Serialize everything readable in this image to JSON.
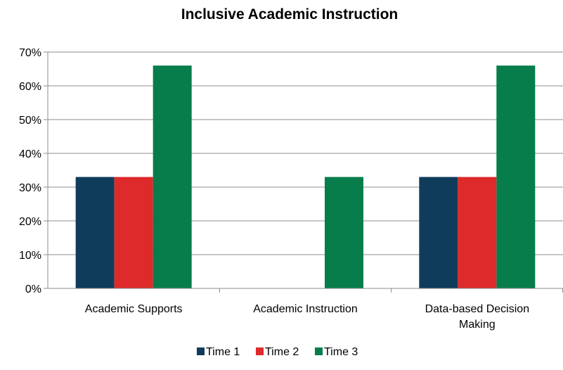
{
  "chart_data": {
    "type": "bar",
    "title": "Inclusive Academic Instruction",
    "xlabel": "",
    "ylabel": "",
    "categories": [
      [
        "Academic Supports"
      ],
      [
        "Academic Instruction"
      ],
      [
        "Data-based Decision",
        "Making"
      ]
    ],
    "series": [
      {
        "name": "Time 1",
        "color": "#0f3c5a",
        "values": [
          33,
          0,
          33
        ]
      },
      {
        "name": "Time 2",
        "color": "#de2a2a",
        "values": [
          33,
          0,
          33
        ]
      },
      {
        "name": "Time 3",
        "color": "#067d4b",
        "values": [
          66,
          33,
          66
        ]
      }
    ],
    "ylim": [
      0,
      70
    ],
    "yticks": [
      "0%",
      "10%",
      "20%",
      "30%",
      "40%",
      "50%",
      "60%",
      "70%"
    ],
    "grid": true,
    "legend_position": "bottom"
  }
}
